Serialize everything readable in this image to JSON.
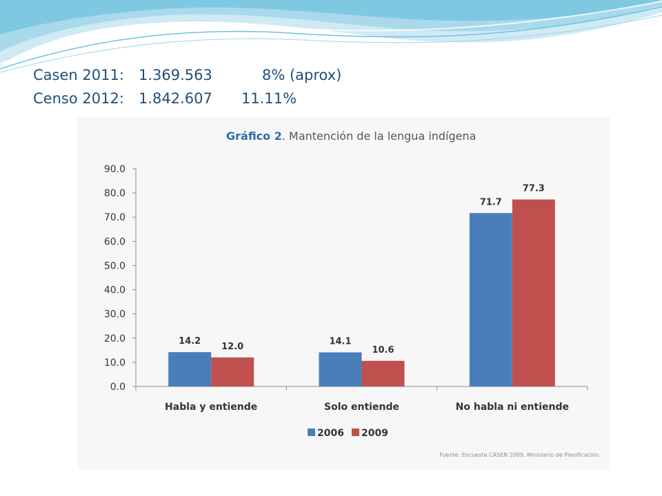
{
  "header": {
    "stats": [
      {
        "label": "Casen 2011:",
        "value": "1.369.563",
        "percent": "8% (aprox)"
      },
      {
        "label": "Censo 2012:",
        "value": "1.842.607",
        "percent": "11.11%"
      }
    ]
  },
  "chart_data": {
    "type": "bar",
    "title_prefix": "Gráfico 2",
    "title_rest": ". Mantención de la lengua indígena",
    "categories": [
      "Habla y entiende",
      "Solo entiende",
      "No habla ni entiende"
    ],
    "series": [
      {
        "name": "2006",
        "values": [
          14.2,
          14.1,
          71.7
        ],
        "color": "#4a7ebb"
      },
      {
        "name": "2009",
        "values": [
          12.0,
          10.6,
          77.3
        ],
        "color": "#c0504d"
      }
    ],
    "ylim": [
      0,
      90
    ],
    "yticks": [
      "0.0",
      "10.0",
      "20.0",
      "30.0",
      "40.0",
      "50.0",
      "60.0",
      "70.0",
      "80.0",
      "90.0"
    ],
    "grid": false,
    "legend_position": "bottom",
    "source": "Fuente: Encuesta CASEN 2009, Ministerio de Planificación."
  }
}
